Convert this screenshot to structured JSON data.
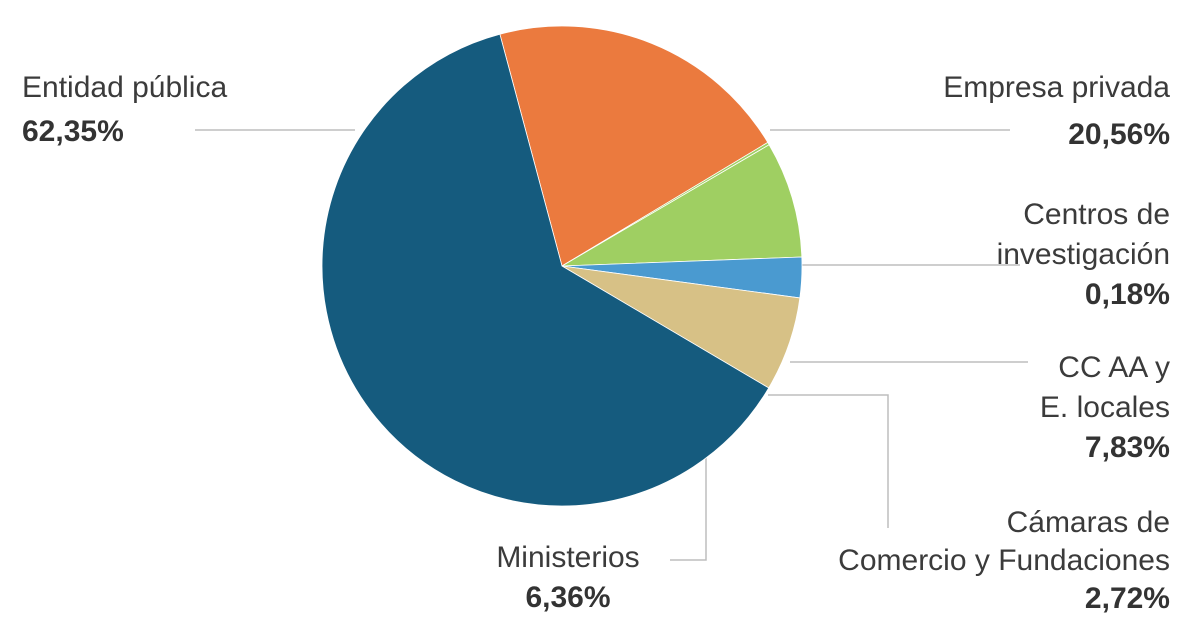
{
  "chart_data": {
    "type": "pie",
    "title": "",
    "slices": [
      {
        "name": "Entidad pública",
        "value": 62.35,
        "label": "62,35%",
        "color": "#155b7e"
      },
      {
        "name": "Empresa privada",
        "value": 20.56,
        "label": "20,56%",
        "color": "#eb7a3e"
      },
      {
        "name": "Centros de investigación",
        "value": 0.18,
        "label": "0,18%",
        "color": "#9fcf62"
      },
      {
        "name": "CC AA y E. locales",
        "value": 7.83,
        "label": "7,83%",
        "color": "#9fcf62"
      },
      {
        "name": "Cámaras de Comercio y Fundaciones",
        "value": 2.72,
        "label": "2,72%",
        "color": "#4a9ad0"
      },
      {
        "name": "Ministerios",
        "value": 6.36,
        "label": "6,36%",
        "color": "#d7c186"
      }
    ]
  },
  "labels": {
    "entidad": {
      "name": "Entidad pública",
      "value": "62,35%"
    },
    "empresa": {
      "name": "Empresa privada",
      "value": "20,56%"
    },
    "centros": {
      "name_line1": "Centros de",
      "name_line2": "investigación",
      "value": "0,18%"
    },
    "ccaa": {
      "name_line1": "CC AA y",
      "name_line2": "E. locales",
      "value": "7,83%"
    },
    "camaras": {
      "name_line1": "Cámaras de",
      "name_line2": "Comercio y Fundaciones",
      "value": "2,72%"
    },
    "ministerios": {
      "name": "Ministerios",
      "value": "6,36%"
    }
  }
}
